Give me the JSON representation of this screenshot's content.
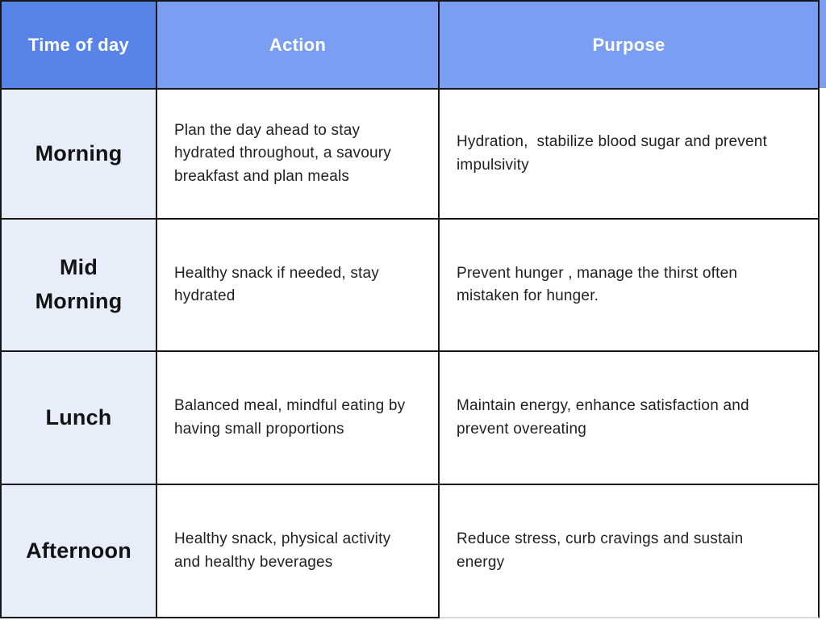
{
  "table": {
    "columns": [
      {
        "label": "Time of day"
      },
      {
        "label": "Action"
      },
      {
        "label": "Purpose"
      }
    ],
    "rows": [
      {
        "time": "Morning",
        "action": "Plan the day ahead to stay hydrated throughout, a savoury breakfast and plan meals",
        "purpose": "Hydration,  stabilize blood sugar and prevent impulsivity"
      },
      {
        "time": "Mid Morning",
        "action": "Healthy snack if needed, stay hydrated",
        "purpose": "Prevent hunger , manage the thirst often mistaken for hunger."
      },
      {
        "time": "Lunch",
        "action": "Balanced meal, mindful eating by having small proportions",
        "purpose": "Maintain energy, enhance satisfaction and prevent overeating"
      },
      {
        "time": "Afternoon",
        "action": "Healthy snack, physical activity and healthy beverages",
        "purpose": "Reduce stress, curb cravings and sustain energy"
      }
    ],
    "colors": {
      "header_time_bg": "#5884e8",
      "header_bg": "#7a9ef2",
      "time_column_bg": "#e8edfa",
      "header_text": "#ffffff",
      "body_text": "#212121",
      "grid_border": "#161616",
      "faded_bottom_border": "#d8d8d8"
    }
  }
}
